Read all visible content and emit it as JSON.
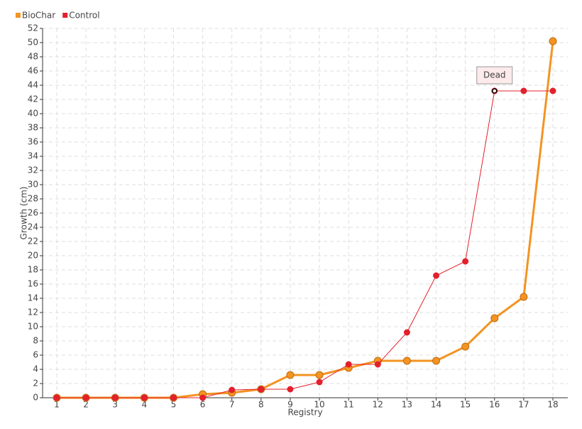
{
  "chart_data": {
    "type": "line",
    "x_label": "Registry",
    "y_label": "Growth (cm)",
    "categories": [
      "1",
      "2",
      "3",
      "4",
      "5",
      "6",
      "7",
      "8",
      "9",
      "10",
      "11",
      "12",
      "13",
      "14",
      "15",
      "16",
      "17",
      "18"
    ],
    "series": [
      {
        "name": "BioChar",
        "color": "#f39422",
        "values": [
          0,
          0,
          0,
          0,
          0,
          0.5,
          0.7,
          1.2,
          3.2,
          3.2,
          4.2,
          5.2,
          5.2,
          5.2,
          7.2,
          11.2,
          14.2,
          50.2
        ]
      },
      {
        "name": "Control",
        "color": "#e3202c",
        "values": [
          0,
          0,
          0,
          0,
          0,
          0,
          1.1,
          1.2,
          1.2,
          2.2,
          4.7,
          4.7,
          9.2,
          17.2,
          19.2,
          43.2,
          43.2,
          43.2
        ],
        "annotation": {
          "text": "Dead",
          "x": "16"
        }
      }
    ],
    "ylim": [
      0,
      52
    ],
    "yticks": [
      0,
      2,
      4,
      6,
      8,
      10,
      12,
      14,
      16,
      18,
      20,
      22,
      24,
      26,
      28,
      30,
      32,
      34,
      36,
      38,
      40,
      42,
      44,
      46,
      48,
      50,
      52
    ],
    "grid": true,
    "legend": "top-left"
  }
}
